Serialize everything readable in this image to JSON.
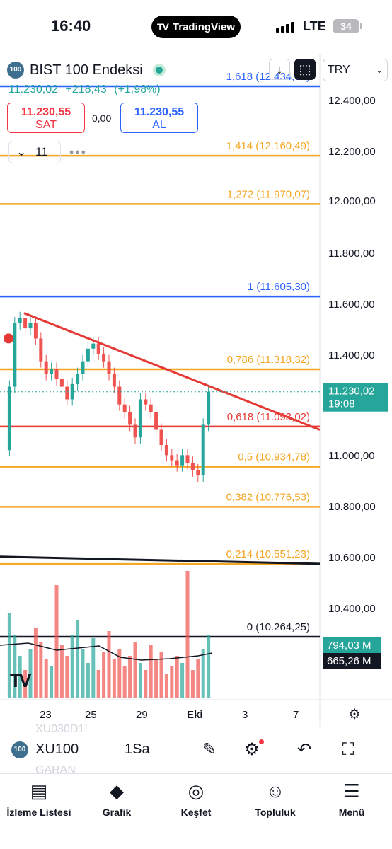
{
  "status_bar": {
    "time": "16:40",
    "app_pill": "TradingView",
    "app_pill_logo": "TV",
    "carrier": "LTE",
    "battery": "34"
  },
  "header": {
    "symbol_badge": "100",
    "symbol_name": "BIST 100 Endeksi",
    "currency": "TRY",
    "last_price": "11.230,02",
    "change": "+218,43",
    "change_pct": "(+1,98%)",
    "sell_price": "11.230,55",
    "sell_label": "SAT",
    "spread": "0,00",
    "buy_price": "11.230,55",
    "buy_label": "AL",
    "indicator_count": "11",
    "more_icon": "•••"
  },
  "colors": {
    "up": "#26a69a",
    "down": "#ef5350",
    "fib_blue": "#2962ff",
    "fib_orange": "#f5a623",
    "fib_red": "#e53935",
    "trend": "#e53935"
  },
  "chart_data": {
    "type": "candlestick",
    "y_axis_labels": [
      "12.400,00",
      "12.200,00",
      "12.000,00",
      "11.800,00",
      "11.600,00",
      "11.400,00",
      "11.000,00",
      "10.800,00",
      "10.600,00",
      "10.400,00"
    ],
    "x_axis_labels": [
      "23",
      "25",
      "29",
      "Eki",
      "3",
      "7"
    ],
    "price_label": {
      "value": "11.230,02",
      "time": "19:08"
    },
    "volume_labels": [
      "794,03 M",
      "665,26 M"
    ],
    "fib_levels": [
      {
        "label": "1,618 (12.434,07)",
        "price": 12434.07,
        "color": "#2962ff"
      },
      {
        "label": "1,414 (12.160,49)",
        "price": 12160.49,
        "color": "#f5a623"
      },
      {
        "label": "1,272 (11.970,07)",
        "price": 11970.07,
        "color": "#f5a623"
      },
      {
        "label": "1 (11.605,30)",
        "price": 11605.3,
        "color": "#2962ff"
      },
      {
        "label": "0,786 (11.318,32)",
        "price": 11318.32,
        "color": "#f5a623"
      },
      {
        "label": "0,618 (11.093,02)",
        "price": 11093.02,
        "color": "#e53935"
      },
      {
        "label": "0,5 (10.934,78)",
        "price": 10934.78,
        "color": "#f5a623"
      },
      {
        "label": "0,382 (10.776,53)",
        "price": 10776.53,
        "color": "#f5a623"
      },
      {
        "label": "0,214 (10.551,23)",
        "price": 10551.23,
        "color": "#f5a623"
      },
      {
        "label": "0 (10.264,25)",
        "price": 10264.25,
        "color": "#131722"
      }
    ]
  },
  "toolbar": {
    "symbol_badge": "100",
    "symbol": "XU100",
    "interval": "1Sa",
    "ghost_symbol_1": "XU030D1!",
    "ghost_symbol_2": "GARAN"
  },
  "nav": {
    "items": [
      {
        "label": "İzleme Listesi",
        "icon": "watchlist-icon"
      },
      {
        "label": "Grafik",
        "icon": "chart-icon"
      },
      {
        "label": "Keşfet",
        "icon": "compass-icon"
      },
      {
        "label": "Topluluk",
        "icon": "community-icon"
      },
      {
        "label": "Menü",
        "icon": "menu-icon"
      }
    ]
  }
}
